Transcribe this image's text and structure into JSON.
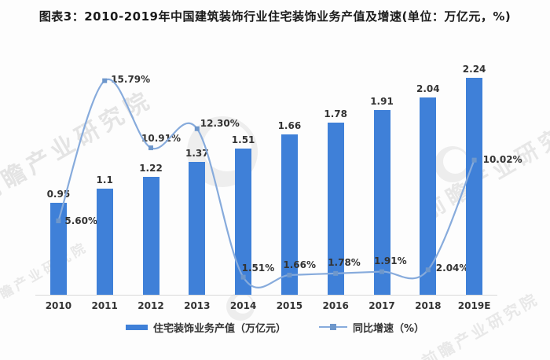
{
  "title": "图表3：2010-2019年中国建筑装饰行业住宅装饰业务产值及增速(单位：万亿元，%)",
  "watermark": {
    "text": "前瞻产业研究院"
  },
  "legend": [
    {
      "label": "住宅装饰业务产值（万亿元）",
      "type": "bar"
    },
    {
      "label": "同比增速（%）",
      "type": "line"
    }
  ],
  "colors": {
    "bar": "#3f80d8",
    "line": "#87abdc",
    "marker": "#6e97cb",
    "label_text": "#333333",
    "axis": "#d9d9d9",
    "watermark": "#c9c9c9"
  },
  "chart_data": {
    "type": "bar+line",
    "title": "2010-2019年中国建筑装饰行业住宅装饰业务产值及增速",
    "units": {
      "bar": "万亿元",
      "line": "%"
    },
    "categories": [
      "2010",
      "2011",
      "2012",
      "2013",
      "2014",
      "2015",
      "2016",
      "2017",
      "2018",
      "2019E"
    ],
    "series": [
      {
        "name": "住宅装饰业务产值（万亿元）",
        "type": "bar",
        "values": [
          0.95,
          1.1,
          1.22,
          1.37,
          1.51,
          1.66,
          1.78,
          1.91,
          2.04,
          2.24
        ],
        "labels": [
          "0.95",
          "1.1",
          "1.22",
          "1.37",
          "1.51",
          "1.66",
          "1.78",
          "1.91",
          "2.04",
          "2.24"
        ]
      },
      {
        "name": "同比增速（%）",
        "type": "line",
        "values": [
          5.6,
          15.79,
          10.91,
          12.3,
          1.51,
          1.66,
          1.78,
          1.91,
          2.04,
          10.02
        ],
        "labels": [
          "5.60%",
          "15.79%",
          "10.91%",
          "12.30%",
          "1.51%",
          "1.66%",
          "1.78%",
          "1.91%",
          "2.04%",
          "10.02%"
        ]
      }
    ],
    "legend_position": "bottom",
    "grid": false,
    "x_axis_line": true,
    "value_labels_shown": true
  }
}
